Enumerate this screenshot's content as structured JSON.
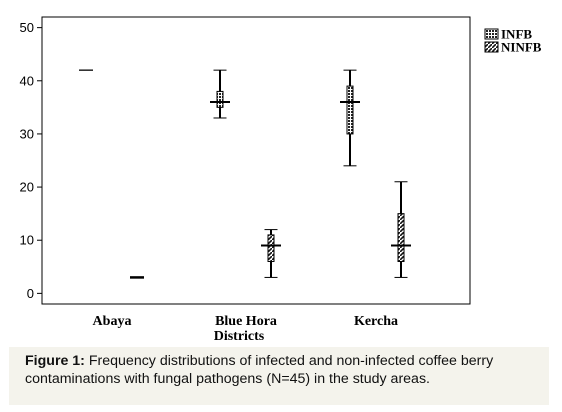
{
  "figure": {
    "caption_label": "Figure 1:",
    "caption_text": " Frequency distributions of infected and non-infected coffee berry contaminations with fungal pathogens (N=45) in the study areas."
  },
  "chart_data": {
    "type": "boxplot",
    "title": "",
    "xlabel": "Districts",
    "ylabel": "",
    "ylim": [
      -2,
      52
    ],
    "yticks": [
      0,
      10,
      20,
      30,
      40,
      50
    ],
    "grid": false,
    "legend_position": "top-right",
    "categories": [
      "Abaya",
      "Blue Hora",
      "Kercha"
    ],
    "series": [
      {
        "name": "INFB",
        "pattern": "grid",
        "boxes": [
          {
            "category": "Abaya",
            "min": 42,
            "q1": 42,
            "median": 42,
            "q3": 42,
            "max": 42
          },
          {
            "category": "Blue Hora",
            "min": 33,
            "q1": 35,
            "median": 36,
            "q3": 38,
            "max": 42
          },
          {
            "category": "Kercha",
            "min": 24,
            "q1": 30,
            "median": 36,
            "q3": 39,
            "max": 42
          }
        ]
      },
      {
        "name": "NINFB",
        "pattern": "diagonal",
        "boxes": [
          {
            "category": "Abaya",
            "min": 3,
            "q1": 3,
            "median": 3,
            "q3": 3,
            "max": 3
          },
          {
            "category": "Blue Hora",
            "min": 3,
            "q1": 6,
            "median": 9,
            "q3": 11,
            "max": 12
          },
          {
            "category": "Kercha",
            "min": 3,
            "q1": 6,
            "median": 9,
            "q3": 15,
            "max": 21
          }
        ]
      }
    ]
  }
}
